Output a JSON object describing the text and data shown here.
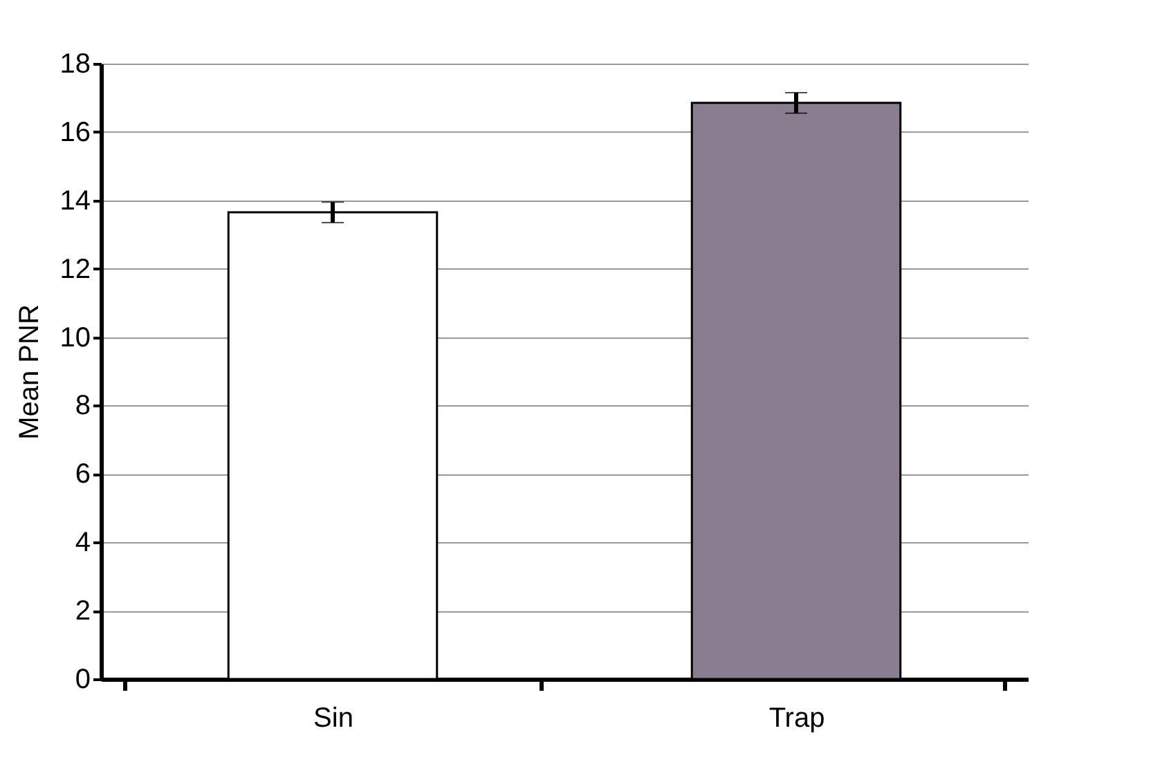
{
  "chart_data": {
    "type": "bar",
    "ylabel": "Mean PNR",
    "categories": [
      "Sin",
      "Trap"
    ],
    "values": [
      13.65,
      16.85
    ],
    "colors": [
      "#ffffff",
      "#8a7d8f"
    ],
    "errors": [
      0.3,
      0.3
    ],
    "ylim": [
      0,
      18
    ],
    "yticks": [
      0,
      2,
      4,
      6,
      8,
      10,
      12,
      14,
      16,
      18
    ],
    "grid": "y"
  }
}
